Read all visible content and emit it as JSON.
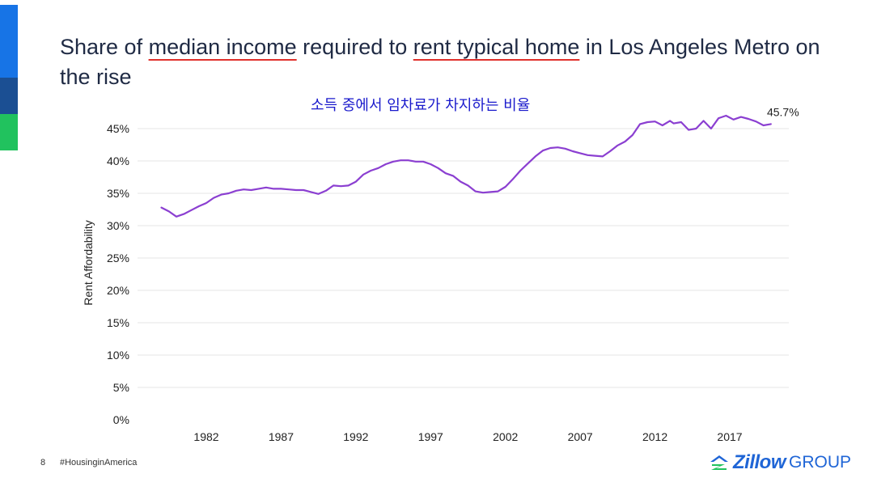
{
  "colors": {
    "accent_top": "#1774e6",
    "accent_mid": "#1b4f93",
    "accent_bottom": "#21c25e",
    "line": "#8b3fd1",
    "logo": "#1f65d6"
  },
  "title": {
    "part1": "Share of ",
    "highlight1": "median income",
    "part2": " required to ",
    "highlight2": "rent typical home",
    "part3": " in Los Angeles Metro on the rise"
  },
  "subtitle": "소득 중에서 임차료가 차지하는 비율",
  "chart_data": {
    "type": "line",
    "title": "Share of median income required to rent typical home in Los Angeles Metro on the rise",
    "xlabel": "",
    "ylabel": "Rent Affordability",
    "ylim": [
      0,
      0.45
    ],
    "xlim": [
      1977.5,
      2020.5
    ],
    "grid": true,
    "yticks": [
      {
        "value": 0,
        "label": "0%"
      },
      {
        "value": 0.05,
        "label": "5%"
      },
      {
        "value": 0.1,
        "label": "10%"
      },
      {
        "value": 0.15,
        "label": "15%"
      },
      {
        "value": 0.2,
        "label": "20%"
      },
      {
        "value": 0.25,
        "label": "25%"
      },
      {
        "value": 0.3,
        "label": "30%"
      },
      {
        "value": 0.35,
        "label": "35%"
      },
      {
        "value": 0.4,
        "label": "40%"
      },
      {
        "value": 0.45,
        "label": "45%"
      }
    ],
    "xticks": [
      {
        "value": 1982,
        "label": "1982"
      },
      {
        "value": 1987,
        "label": "1987"
      },
      {
        "value": 1992,
        "label": "1992"
      },
      {
        "value": 1997,
        "label": "1997"
      },
      {
        "value": 2002,
        "label": "2002"
      },
      {
        "value": 2007,
        "label": "2007"
      },
      {
        "value": 2012,
        "label": "2012"
      },
      {
        "value": 2017,
        "label": "2017"
      }
    ],
    "annotation": {
      "label": "45.7%",
      "x": 2019.75,
      "y": 0.457
    },
    "series": [
      {
        "name": "Rent Affordability",
        "x": [
          1979.0,
          1979.5,
          1980.0,
          1980.5,
          1981.0,
          1981.5,
          1982.0,
          1982.5,
          1983.0,
          1983.5,
          1984.0,
          1984.5,
          1985.0,
          1985.5,
          1986.0,
          1986.5,
          1987.0,
          1987.5,
          1988.0,
          1988.5,
          1989.0,
          1989.5,
          1990.0,
          1990.5,
          1991.0,
          1991.5,
          1992.0,
          1992.5,
          1993.0,
          1993.5,
          1994.0,
          1994.5,
          1995.0,
          1995.5,
          1996.0,
          1996.5,
          1997.0,
          1997.5,
          1998.0,
          1998.5,
          1999.0,
          1999.5,
          2000.0,
          2000.5,
          2001.0,
          2001.5,
          2002.0,
          2002.5,
          2003.0,
          2003.5,
          2004.0,
          2004.5,
          2005.0,
          2005.5,
          2006.0,
          2006.5,
          2007.0,
          2007.5,
          2008.0,
          2008.5,
          2009.0,
          2009.5,
          2010.0,
          2010.5,
          2011.0,
          2011.5,
          2012.0,
          2012.5,
          2013.0,
          2013.25,
          2013.75,
          2014.25,
          2014.75,
          2015.25,
          2015.75,
          2016.25,
          2016.75,
          2017.25,
          2017.75,
          2018.25,
          2018.75,
          2019.25,
          2019.75
        ],
        "values": [
          0.328,
          0.322,
          0.314,
          0.318,
          0.324,
          0.33,
          0.335,
          0.343,
          0.348,
          0.35,
          0.354,
          0.356,
          0.355,
          0.357,
          0.359,
          0.357,
          0.357,
          0.356,
          0.355,
          0.355,
          0.352,
          0.349,
          0.354,
          0.362,
          0.361,
          0.362,
          0.368,
          0.379,
          0.385,
          0.389,
          0.395,
          0.399,
          0.401,
          0.401,
          0.399,
          0.399,
          0.395,
          0.389,
          0.381,
          0.377,
          0.368,
          0.362,
          0.353,
          0.351,
          0.352,
          0.353,
          0.36,
          0.372,
          0.385,
          0.396,
          0.407,
          0.416,
          0.42,
          0.421,
          0.419,
          0.415,
          0.412,
          0.409,
          0.408,
          0.407,
          0.415,
          0.424,
          0.43,
          0.44,
          0.457,
          0.46,
          0.461,
          0.455,
          0.462,
          0.458,
          0.46,
          0.448,
          0.45,
          0.462,
          0.45,
          0.466,
          0.47,
          0.464,
          0.468,
          0.465,
          0.461,
          0.455,
          0.457
        ]
      }
    ]
  },
  "footer": {
    "page_number": "8",
    "hashtag": "#HousinginAmerica",
    "logo_word": "Zillow",
    "logo_sub": "GROUP"
  }
}
